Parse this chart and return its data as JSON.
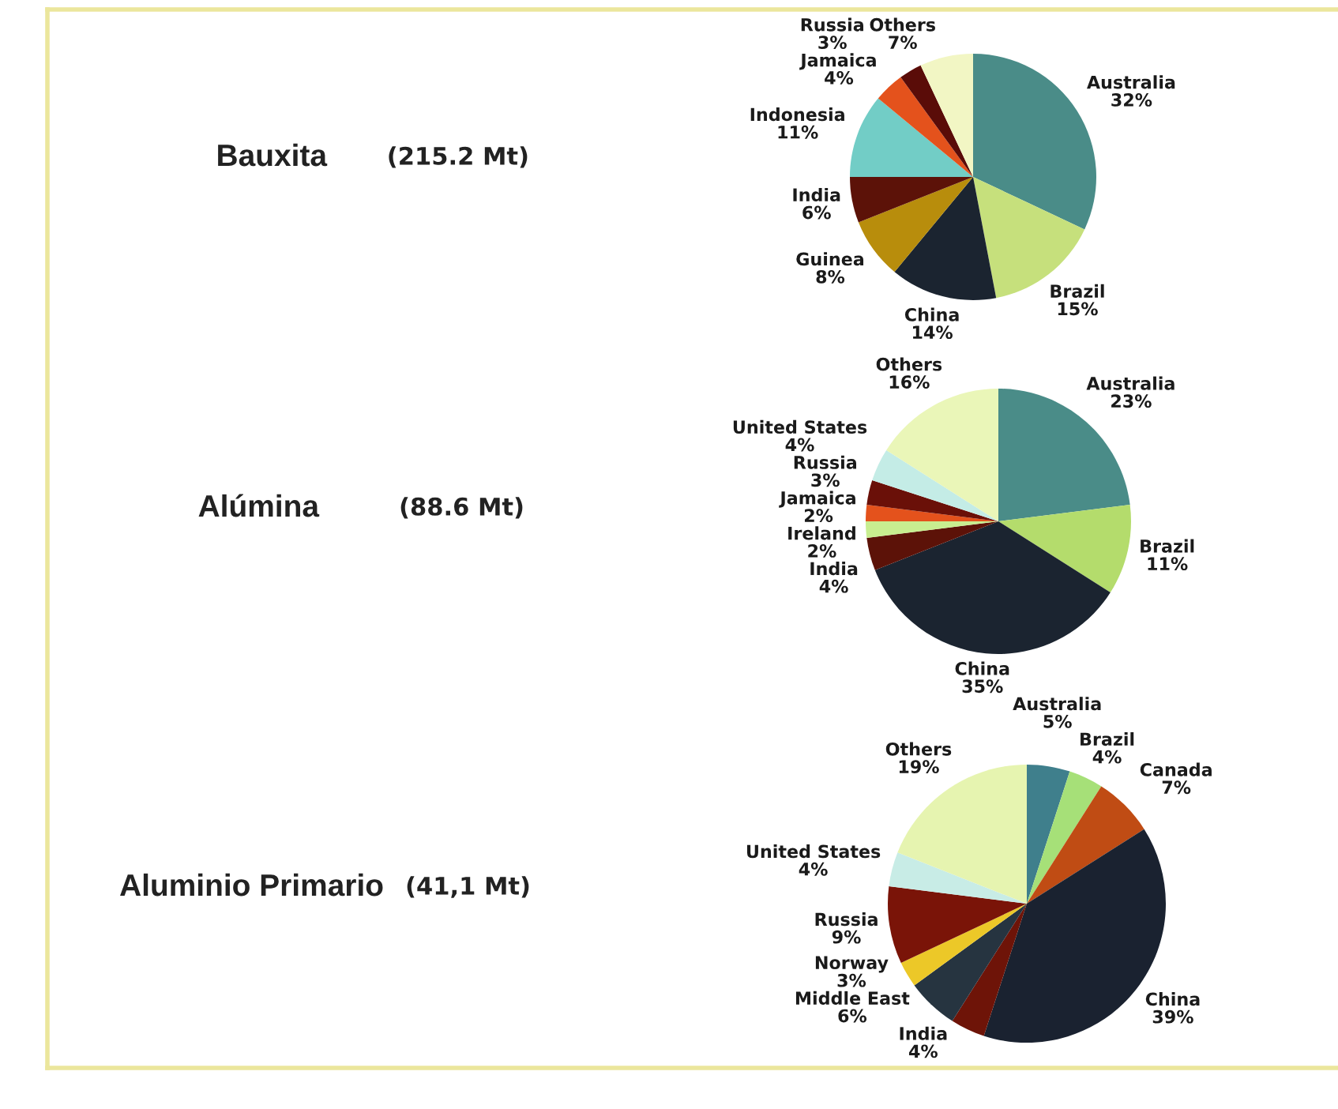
{
  "chart_data": [
    {
      "type": "pie",
      "title": "Bauxita",
      "subtitle": "(215.2 Mt)",
      "categories": [
        "Australia",
        "Brazil",
        "China",
        "Guinea",
        "India",
        "Indonesia",
        "Jamaica",
        "Russia",
        "Others"
      ],
      "values": [
        32,
        15,
        14,
        8,
        6,
        11,
        4,
        3,
        7
      ],
      "value_labels": [
        "32%",
        "15%",
        "14%",
        "8%",
        "6%",
        "11%",
        "4%",
        "3%",
        "7%"
      ],
      "colors": [
        "#4a8c88",
        "#c6e07c",
        "#1b2430",
        "#b88d0c",
        "#5c1208",
        "#72cdc6",
        "#e4521c",
        "#5a0c08",
        "#f2f6c4"
      ]
    },
    {
      "type": "pie",
      "title": "Alúmina",
      "subtitle": "(88.6 Mt)",
      "categories": [
        "Australia",
        "Brazil",
        "China",
        "India",
        "Ireland",
        "Jamaica",
        "Russia",
        "United States",
        "Others"
      ],
      "values": [
        23,
        11,
        35,
        4,
        2,
        2,
        3,
        4,
        16
      ],
      "value_labels": [
        "23%",
        "11%",
        "35%",
        "4%",
        "2%",
        "2%",
        "3%",
        "4%",
        "16%"
      ],
      "colors": [
        "#4a8c88",
        "#b4dc6c",
        "#1b2430",
        "#5c1208",
        "#c8ee90",
        "#e4521c",
        "#6a1008",
        "#c4ece6",
        "#eaf6b8"
      ]
    },
    {
      "type": "pie",
      "title": "Aluminio Primario",
      "subtitle": "(41,1 Mt)",
      "categories": [
        "Australia",
        "Brazil",
        "Canada",
        "China",
        "India",
        "Middle East",
        "Norway",
        "Russia",
        "United States",
        "Others"
      ],
      "values": [
        5,
        4,
        7,
        39,
        4,
        6,
        3,
        9,
        4,
        19
      ],
      "value_labels": [
        "5%",
        "4%",
        "7%",
        "39%",
        "4%",
        "6%",
        "3%",
        "9%",
        "4%",
        "19%"
      ],
      "colors": [
        "#3f7f8c",
        "#a6e078",
        "#c04c14",
        "#1a2230",
        "#6e1408",
        "#263440",
        "#ecc828",
        "#7a1408",
        "#c8ece6",
        "#e6f4b0"
      ]
    }
  ]
}
